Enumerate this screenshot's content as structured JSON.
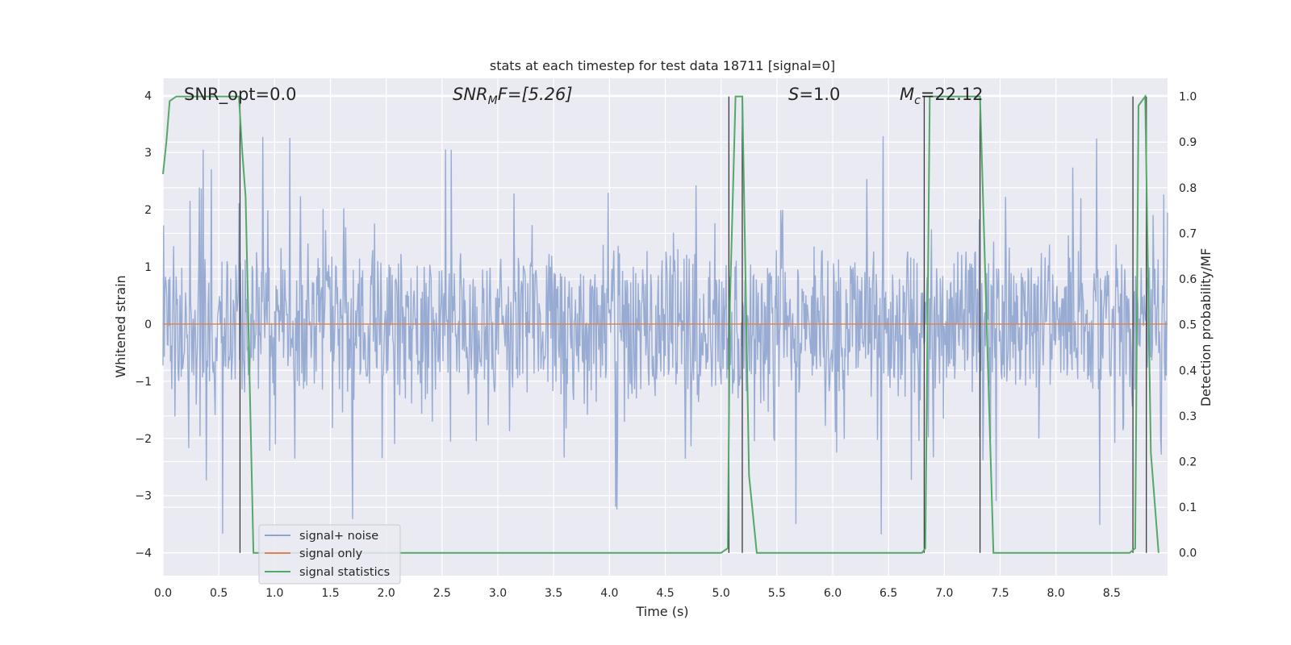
{
  "chart_data": {
    "type": "line",
    "title": "stats at each timestep for test data 18711 [signal=0]",
    "xlabel": "Time (s)",
    "ylabel": "Whitened strain",
    "y2label": "Detection probability/MF",
    "xlim": [
      0,
      9.0
    ],
    "ylim": [
      -4.4,
      4.3
    ],
    "y2lim": [
      -0.05,
      1.04
    ],
    "x_ticks": [
      "0.0",
      "0.5",
      "1.0",
      "1.5",
      "2.0",
      "2.5",
      "3.0",
      "3.5",
      "4.0",
      "4.5",
      "5.0",
      "5.5",
      "6.0",
      "6.5",
      "7.0",
      "7.5",
      "8.0",
      "8.5"
    ],
    "y_ticks": [
      "4",
      "3",
      "2",
      "1",
      "0",
      "−1",
      "−2",
      "−3",
      "−4"
    ],
    "y2_ticks": [
      "1.0",
      "0.9",
      "0.8",
      "0.7",
      "0.6",
      "0.5",
      "0.4",
      "0.3",
      "0.2",
      "0.1",
      "0.0"
    ],
    "grid": true,
    "legend_position": "lower-left",
    "annotations": {
      "snr_opt": "SNR_opt=0.0",
      "snr_mf_sym": "SNR",
      "snr_mf_sub": "M",
      "snr_mf_rest": "F=[5.26]",
      "s_sym": "S",
      "s_rest": "=1.0",
      "mc_sym": "M",
      "mc_sub": "c",
      "mc_rest": "=22.12"
    },
    "series": [
      {
        "name": "signal+ noise",
        "color": "#8fa5cf",
        "description_values": "noise, amplitude ~±1.5 with spikes to ±3.9, sampled over 0–9 s",
        "envelope": 1.5,
        "spike_max": 3.9
      },
      {
        "name": "signal only",
        "color": "#dd8452",
        "values_x": [
          0,
          9.0
        ],
        "values_y": [
          0,
          0
        ]
      },
      {
        "name": "signal statistics",
        "color": "#55a868",
        "axis": "right",
        "x": [
          0.0,
          0.03,
          0.06,
          0.12,
          0.5,
          0.68,
          0.71,
          0.74,
          0.81,
          5.0,
          5.06,
          5.08,
          5.13,
          5.19,
          5.25,
          5.32,
          6.8,
          6.83,
          6.87,
          7.32,
          7.44,
          8.66,
          8.71,
          8.74,
          8.8,
          8.85,
          8.92
        ],
        "y": [
          0.83,
          0.9,
          0.99,
          1.0,
          1.0,
          1.0,
          0.88,
          0.78,
          0.0,
          0.0,
          0.01,
          0.55,
          1.0,
          1.0,
          0.17,
          0.0,
          0.0,
          0.01,
          1.0,
          1.0,
          0.0,
          0.0,
          0.01,
          0.98,
          1.0,
          0.22,
          0.0
        ]
      }
    ],
    "vertical_lines_x": [
      0.69,
      5.07,
      5.19,
      6.82,
      7.32,
      8.69,
      8.81
    ]
  }
}
